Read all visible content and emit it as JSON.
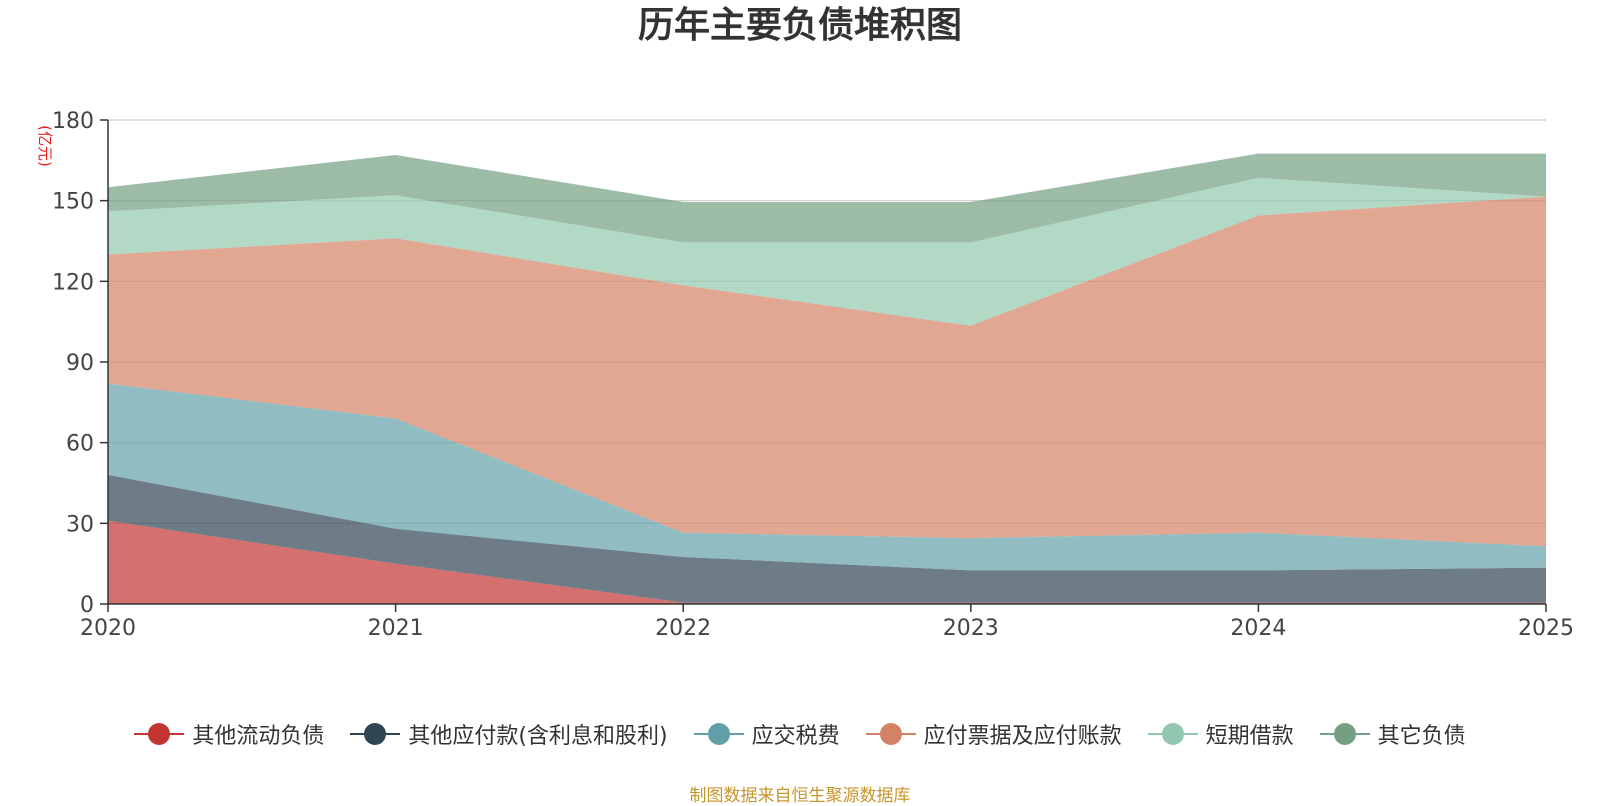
{
  "title": "历年主要负债堆积图",
  "source": "制图数据来自恒生聚源数据库",
  "chart_data": {
    "type": "area",
    "stacked": true,
    "title": "历年主要负债堆积图",
    "unit_label": "(亿元)",
    "x": [
      "2020",
      "2021",
      "2022",
      "2023",
      "2024",
      "2025"
    ],
    "ylim": [
      0,
      180
    ],
    "yticks": [
      0,
      30,
      60,
      90,
      120,
      150,
      180
    ],
    "grid": true,
    "legend_position": "bottom",
    "series": [
      {
        "name": "其他流动负债",
        "color": "#c23531",
        "values": [
          31,
          15,
          0.5,
          0.5,
          0.5,
          0.5
        ]
      },
      {
        "name": "其他应付款(含利息和股利)",
        "color": "#2f4554",
        "values": [
          17,
          13,
          17,
          12,
          12,
          13
        ]
      },
      {
        "name": "应交税费",
        "color": "#61a0a8",
        "values": [
          34,
          41,
          9,
          12,
          14,
          8
        ]
      },
      {
        "name": "应付票据及应付账款",
        "color": "#d48265",
        "values": [
          48,
          67,
          92,
          79,
          118,
          130
        ]
      },
      {
        "name": "短期借款",
        "color": "#91c7ae",
        "values": [
          16,
          16,
          16,
          31,
          14,
          0
        ]
      },
      {
        "name": "其它负债",
        "color": "#749f83",
        "values": [
          9,
          15,
          15,
          15,
          9,
          16
        ]
      }
    ]
  }
}
